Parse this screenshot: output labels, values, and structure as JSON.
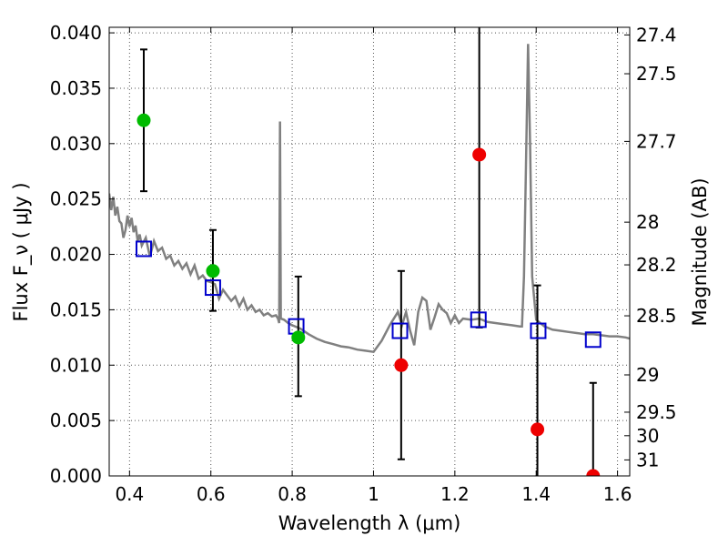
{
  "chart_data": {
    "type": "scatter",
    "xlabel": "Wavelength  λ (μm)",
    "ylabel": "Flux  F_ν  ( μJy )",
    "y2label": "Magnitude (AB)",
    "xlim": [
      0.35,
      1.63
    ],
    "ylim": [
      0.0,
      0.0405
    ],
    "grid": true,
    "x_ticks": [
      0.4,
      0.6,
      0.8,
      1.0,
      1.2,
      1.4,
      1.6
    ],
    "x_tick_labels": [
      "0.4",
      "0.6",
      "0.8",
      "1",
      "1.2",
      "1.4",
      "1.6"
    ],
    "y_ticks": [
      0.0,
      0.005,
      0.01,
      0.015,
      0.02,
      0.025,
      0.03,
      0.035,
      0.04
    ],
    "y_tick_labels": [
      "0.000",
      "0.005",
      "0.010",
      "0.015",
      "0.020",
      "0.025",
      "0.030",
      "0.035",
      "0.040"
    ],
    "mag_ticks": [
      27.4,
      27.5,
      27.7,
      28,
      28.2,
      28.5,
      29,
      29.5,
      30,
      31
    ],
    "mag_tick_labels": [
      "27.4",
      "27.5",
      "27.7",
      "28",
      "28.2",
      "28.5",
      "29",
      "29.5",
      "30",
      "31"
    ],
    "colors": {
      "model": "#808080",
      "green": "#00bb00",
      "red": "#ee0000",
      "square": "#0000cc",
      "errorbar": "#000000",
      "grid": "#555555"
    },
    "series": [
      {
        "marker": "line",
        "x": [
          0.35,
          0.355,
          0.36,
          0.365,
          0.37,
          0.375,
          0.38,
          0.385,
          0.39,
          0.395,
          0.4,
          0.405,
          0.41,
          0.415,
          0.42,
          0.425,
          0.43,
          0.44,
          0.45,
          0.46,
          0.47,
          0.48,
          0.49,
          0.5,
          0.51,
          0.52,
          0.53,
          0.54,
          0.55,
          0.56,
          0.57,
          0.58,
          0.59,
          0.6,
          0.61,
          0.62,
          0.63,
          0.64,
          0.65,
          0.66,
          0.67,
          0.68,
          0.69,
          0.7,
          0.71,
          0.72,
          0.73,
          0.74,
          0.75,
          0.76,
          0.765,
          0.768,
          0.77,
          0.772,
          0.78,
          0.79,
          0.8,
          0.82,
          0.84,
          0.86,
          0.88,
          0.9,
          0.92,
          0.94,
          0.96,
          0.98,
          1.0,
          1.02,
          1.04,
          1.06,
          1.07,
          1.08,
          1.09,
          1.1,
          1.11,
          1.12,
          1.13,
          1.14,
          1.15,
          1.16,
          1.17,
          1.18,
          1.19,
          1.2,
          1.21,
          1.22,
          1.24,
          1.26,
          1.28,
          1.3,
          1.32,
          1.34,
          1.36,
          1.365,
          1.37,
          1.375,
          1.38,
          1.385,
          1.39,
          1.4,
          1.42,
          1.44,
          1.46,
          1.48,
          1.5,
          1.52,
          1.54,
          1.56,
          1.58,
          1.6,
          1.62,
          1.63
        ],
        "y": [
          0.0255,
          0.024,
          0.0252,
          0.0235,
          0.0243,
          0.023,
          0.0228,
          0.0215,
          0.0222,
          0.0235,
          0.0225,
          0.0233,
          0.022,
          0.0226,
          0.0212,
          0.0218,
          0.0208,
          0.0215,
          0.0198,
          0.0212,
          0.0203,
          0.0206,
          0.0196,
          0.0199,
          0.019,
          0.0194,
          0.0187,
          0.0192,
          0.0182,
          0.019,
          0.0178,
          0.0181,
          0.0176,
          0.0175,
          0.0173,
          0.016,
          0.0168,
          0.0163,
          0.0158,
          0.0162,
          0.0153,
          0.016,
          0.015,
          0.0154,
          0.0148,
          0.015,
          0.0145,
          0.0147,
          0.0144,
          0.0145,
          0.0142,
          0.0138,
          0.032,
          0.0142,
          0.0141,
          0.0138,
          0.0136,
          0.0133,
          0.0128,
          0.0124,
          0.0121,
          0.0119,
          0.0117,
          0.0116,
          0.0114,
          0.0113,
          0.0112,
          0.0122,
          0.0136,
          0.0148,
          0.0136,
          0.0148,
          0.0131,
          0.0118,
          0.0148,
          0.0161,
          0.0158,
          0.0132,
          0.0143,
          0.0155,
          0.015,
          0.0147,
          0.0138,
          0.0145,
          0.0138,
          0.0142,
          0.0141,
          0.0142,
          0.0139,
          0.0138,
          0.0137,
          0.0136,
          0.0135,
          0.0135,
          0.018,
          0.028,
          0.039,
          0.03,
          0.018,
          0.0141,
          0.0135,
          0.0132,
          0.0131,
          0.013,
          0.0129,
          0.0128,
          0.0128,
          0.0127,
          0.0126,
          0.0126,
          0.0125,
          0.0124
        ]
      },
      {
        "marker": "square",
        "x": [
          0.435,
          0.605,
          0.81,
          1.065,
          1.258,
          1.405,
          1.54
        ],
        "y": [
          0.0205,
          0.017,
          0.0135,
          0.0131,
          0.0141,
          0.0131,
          0.0123
        ]
      },
      {
        "marker": "circle-green",
        "x": [
          0.435,
          0.605,
          0.815
        ],
        "y": [
          0.0321,
          0.0185,
          0.0125
        ],
        "err_low": [
          0.0257,
          0.0149,
          0.0072
        ],
        "err_high": [
          0.0385,
          0.0222,
          0.018
        ]
      },
      {
        "marker": "circle-red",
        "x": [
          1.068,
          1.26,
          1.403,
          1.54
        ],
        "y": [
          0.01,
          0.029,
          0.0042,
          0.0
        ],
        "err_low": [
          0.0015,
          0.0134,
          0.0,
          0.0
        ],
        "err_high": [
          0.0185,
          0.0405,
          0.0172,
          0.0084
        ]
      }
    ]
  }
}
